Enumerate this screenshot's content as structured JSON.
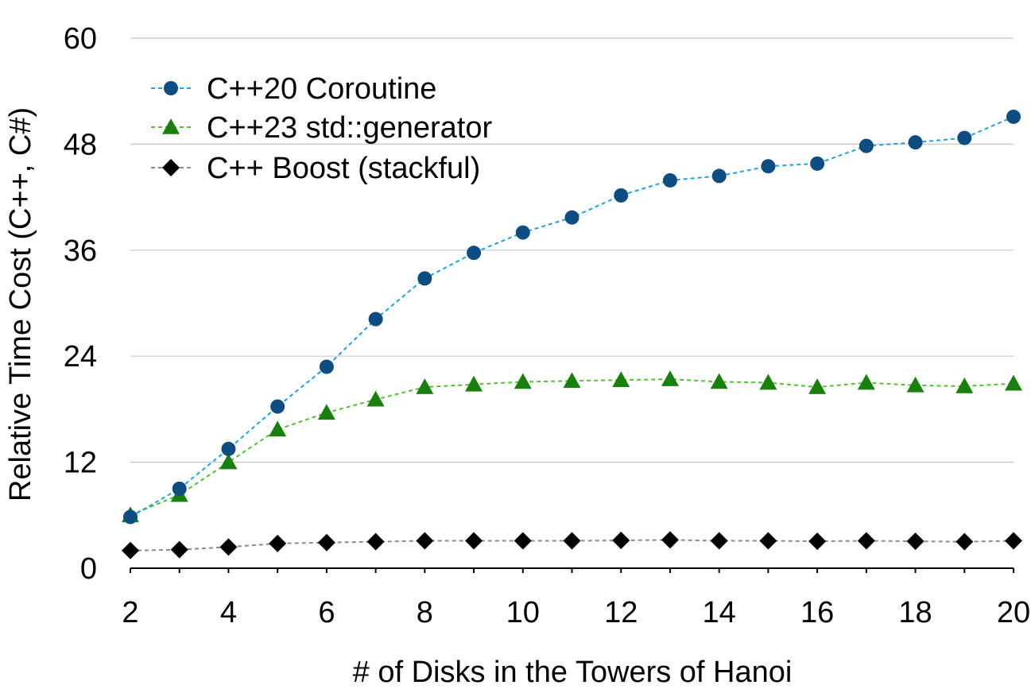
{
  "chart_data": {
    "type": "line",
    "title": "",
    "xlabel": "# of Disks in the Towers of Hanoi",
    "ylabel": "Relative Time Cost (C++, C#)",
    "x": [
      2,
      3,
      4,
      5,
      6,
      7,
      8,
      9,
      10,
      11,
      12,
      13,
      14,
      15,
      16,
      17,
      18,
      19,
      20
    ],
    "xlim": [
      2,
      20
    ],
    "ylim": [
      0,
      60
    ],
    "xticks": [
      "2",
      "4",
      "6",
      "8",
      "10",
      "12",
      "14",
      "16",
      "18",
      "20"
    ],
    "yticks": [
      "0",
      "12",
      "24",
      "36",
      "48",
      "60"
    ],
    "grid": "horizontal",
    "legend_position": "top-left",
    "series": [
      {
        "name": "C++20 Coroutine",
        "marker": "circle",
        "line_color": "#1aa3e8",
        "marker_color": "#0f4c81",
        "values": [
          5.8,
          9.0,
          13.5,
          18.3,
          22.8,
          28.2,
          32.8,
          35.7,
          38.0,
          39.7,
          42.2,
          43.9,
          44.4,
          45.5,
          45.8,
          47.8,
          48.2,
          48.7,
          51.1
        ]
      },
      {
        "name": "C++23 std::generator",
        "marker": "triangle",
        "line_color": "#52c234",
        "marker_color": "#1b7f0f",
        "values": [
          6.0,
          8.3,
          12.0,
          15.7,
          17.6,
          19.1,
          20.5,
          20.8,
          21.1,
          21.2,
          21.3,
          21.4,
          21.1,
          21.0,
          20.5,
          21.0,
          20.7,
          20.6,
          20.9
        ]
      },
      {
        "name": "C++ Boost (stackful)",
        "marker": "diamond",
        "line_color": "#8c8c8c",
        "marker_color": "#000000",
        "values": [
          2.0,
          2.1,
          2.4,
          2.8,
          2.9,
          3.0,
          3.1,
          3.1,
          3.1,
          3.1,
          3.15,
          3.2,
          3.1,
          3.1,
          3.05,
          3.1,
          3.05,
          3.0,
          3.1
        ]
      }
    ]
  }
}
